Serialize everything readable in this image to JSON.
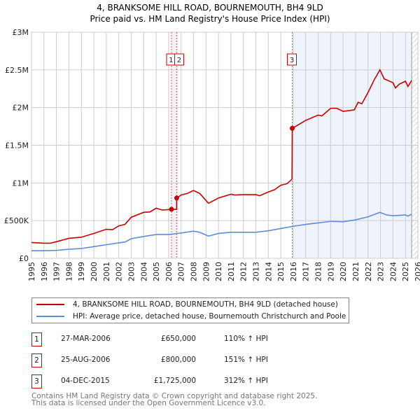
{
  "chart_data": {
    "type": "line",
    "title": "4, BRANKSOME HILL ROAD, BOURNEMOUTH, BH4 9LD",
    "subtitle": "Price paid vs. HM Land Registry's House Price Index (HPI)",
    "xlim": [
      1995,
      2026
    ],
    "ylim": [
      0,
      3000000
    ],
    "x_ticks": [
      "1995",
      "1996",
      "1997",
      "1998",
      "1999",
      "2000",
      "2001",
      "2002",
      "2003",
      "2004",
      "2005",
      "2006",
      "2007",
      "2008",
      "2009",
      "2010",
      "2011",
      "2012",
      "2013",
      "2014",
      "2015",
      "2016",
      "2017",
      "2018",
      "2019",
      "2020",
      "2021",
      "2022",
      "2023",
      "2024",
      "2025",
      "2026"
    ],
    "y_ticks": [
      {
        "value": 0,
        "label": "£0"
      },
      {
        "value": 500000,
        "label": "£500K"
      },
      {
        "value": 1000000,
        "label": "£1M"
      },
      {
        "value": 1500000,
        "label": "£1.5M"
      },
      {
        "value": 2000000,
        "label": "£2M"
      },
      {
        "value": 2500000,
        "label": "£2.5M"
      },
      {
        "value": 3000000,
        "label": "£3M"
      }
    ],
    "grid": true,
    "series": [
      {
        "name": "4, BRANKSOME HILL ROAD, BOURNEMOUTH, BH4 9LD (detached house)",
        "color": "#cc0000",
        "points": [
          [
            1995,
            210000
          ],
          [
            1996,
            200000
          ],
          [
            1996.5,
            200000
          ],
          [
            1997,
            220000
          ],
          [
            1998,
            265000
          ],
          [
            1999,
            280000
          ],
          [
            2000,
            330000
          ],
          [
            2001,
            385000
          ],
          [
            2001.5,
            380000
          ],
          [
            2002,
            430000
          ],
          [
            2002.5,
            450000
          ],
          [
            2003,
            545000
          ],
          [
            2004,
            610000
          ],
          [
            2004.5,
            615000
          ],
          [
            2005,
            665000
          ],
          [
            2005.5,
            640000
          ],
          [
            2006.23,
            650000
          ],
          [
            2006.64,
            650000
          ],
          [
            2006.65,
            800000
          ],
          [
            2007,
            840000
          ],
          [
            2007.5,
            860000
          ],
          [
            2008,
            900000
          ],
          [
            2008.5,
            860000
          ],
          [
            2009.2,
            730000
          ],
          [
            2010,
            800000
          ],
          [
            2011,
            850000
          ],
          [
            2011.3,
            840000
          ],
          [
            2012,
            845000
          ],
          [
            2013,
            845000
          ],
          [
            2013.3,
            830000
          ],
          [
            2014,
            880000
          ],
          [
            2014.5,
            910000
          ],
          [
            2015,
            970000
          ],
          [
            2015.5,
            990000
          ],
          [
            2015.9,
            1050000
          ],
          [
            2015.92,
            1725000
          ],
          [
            2016.5,
            1780000
          ],
          [
            2017,
            1830000
          ],
          [
            2018,
            1900000
          ],
          [
            2018.3,
            1890000
          ],
          [
            2019,
            1990000
          ],
          [
            2019.5,
            1990000
          ],
          [
            2020,
            1950000
          ],
          [
            2020.5,
            1960000
          ],
          [
            2020.9,
            1970000
          ],
          [
            2021.2,
            2070000
          ],
          [
            2021.5,
            2050000
          ],
          [
            2022,
            2200000
          ],
          [
            2022.5,
            2370000
          ],
          [
            2022.95,
            2500000
          ],
          [
            2023.3,
            2380000
          ],
          [
            2024,
            2330000
          ],
          [
            2024.2,
            2260000
          ],
          [
            2024.5,
            2310000
          ],
          [
            2025,
            2350000
          ],
          [
            2025.2,
            2280000
          ],
          [
            2025.5,
            2360000
          ]
        ]
      },
      {
        "name": "HPI: Average price, detached house, Bournemouth Christchurch and Poole",
        "color": "#5b8ed6",
        "points": [
          [
            1995,
            100000
          ],
          [
            1996,
            100000
          ],
          [
            1997,
            105000
          ],
          [
            1998,
            120000
          ],
          [
            1999,
            130000
          ],
          [
            2000,
            155000
          ],
          [
            2001,
            180000
          ],
          [
            2002,
            205000
          ],
          [
            2002.5,
            215000
          ],
          [
            2003,
            260000
          ],
          [
            2004,
            290000
          ],
          [
            2005,
            315000
          ],
          [
            2006,
            315000
          ],
          [
            2007,
            335000
          ],
          [
            2008,
            360000
          ],
          [
            2008.5,
            345000
          ],
          [
            2009.2,
            295000
          ],
          [
            2010,
            330000
          ],
          [
            2011,
            345000
          ],
          [
            2012,
            345000
          ],
          [
            2013,
            345000
          ],
          [
            2014,
            365000
          ],
          [
            2015,
            395000
          ],
          [
            2016,
            425000
          ],
          [
            2017,
            450000
          ],
          [
            2018,
            470000
          ],
          [
            2019,
            490000
          ],
          [
            2020,
            485000
          ],
          [
            2021,
            510000
          ],
          [
            2022,
            550000
          ],
          [
            2022.95,
            610000
          ],
          [
            2023.5,
            575000
          ],
          [
            2024,
            565000
          ],
          [
            2025,
            575000
          ],
          [
            2025.2,
            560000
          ],
          [
            2025.5,
            585000
          ]
        ]
      }
    ],
    "sales": [
      {
        "num": "1",
        "x": 2006.23,
        "value": 650000,
        "date": "27-MAR-2006",
        "price": "£650,000",
        "pct": "110% ↑ HPI"
      },
      {
        "num": "2",
        "x": 2006.65,
        "value": 800000,
        "date": "25-AUG-2006",
        "price": "£800,000",
        "pct": "151% ↑ HPI"
      },
      {
        "num": "3",
        "x": 2015.92,
        "value": 1725000,
        "date": "04-DEC-2015",
        "price": "£1,725,000",
        "pct": "312% ↑ HPI"
      }
    ],
    "shaded_from": 2015.92,
    "hatched_from": 2025.5,
    "legend_position": "bottom"
  },
  "footer": {
    "line1": "Contains HM Land Registry data © Crown copyright and database right 2025.",
    "line2": "This data is licensed under the Open Government Licence v3.0."
  }
}
